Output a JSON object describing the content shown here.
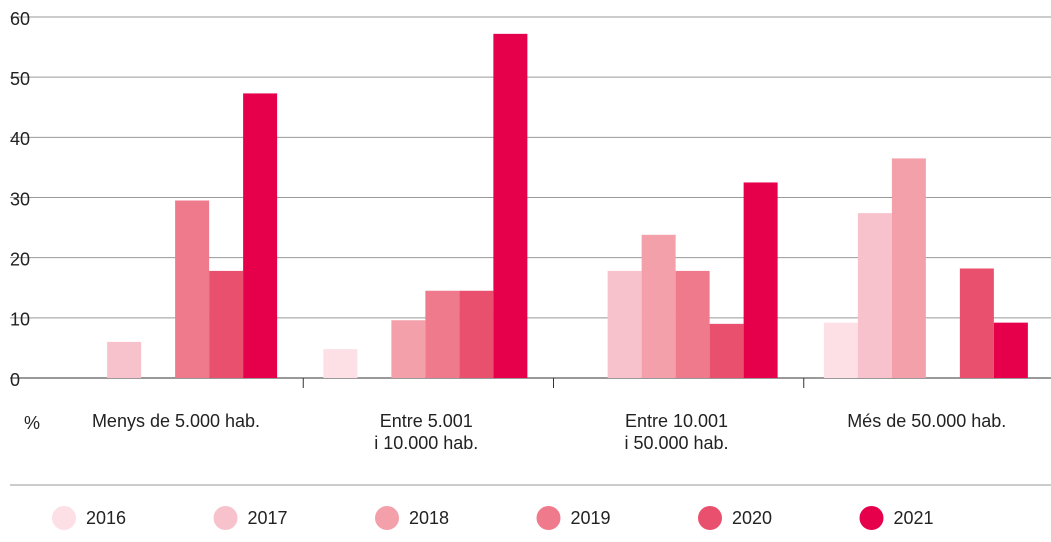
{
  "chart_data": {
    "type": "bar",
    "y_label": "%",
    "categories": [
      "Menys de 5.000 hab.",
      "Entre 5.001\ni 10.000 hab.",
      "Entre 10.001\ni 50.000 hab.",
      "Més de 50.000 hab."
    ],
    "series": [
      {
        "name": "2016",
        "color": "#fce0e6",
        "values": [
          null,
          4.8,
          null,
          9.2
        ]
      },
      {
        "name": "2017",
        "color": "#f7c2cc",
        "values": [
          6,
          null,
          17.8,
          27.4
        ]
      },
      {
        "name": "2018",
        "color": "#f3a0aa",
        "values": [
          null,
          9.6,
          23.8,
          36.5
        ]
      },
      {
        "name": "2019",
        "color": "#ee7a8c",
        "values": [
          29.5,
          14.5,
          17.8,
          null
        ]
      },
      {
        "name": "2020",
        "color": "#e9506e",
        "values": [
          17.8,
          14.5,
          9,
          18.2
        ]
      },
      {
        "name": "2021",
        "color": "#e6004c",
        "values": [
          47.3,
          57.2,
          32.5,
          9.2
        ]
      }
    ],
    "ylim": [
      0,
      60
    ],
    "yticks": [
      0,
      10,
      20,
      30,
      40,
      50,
      60
    ],
    "grid": true
  }
}
